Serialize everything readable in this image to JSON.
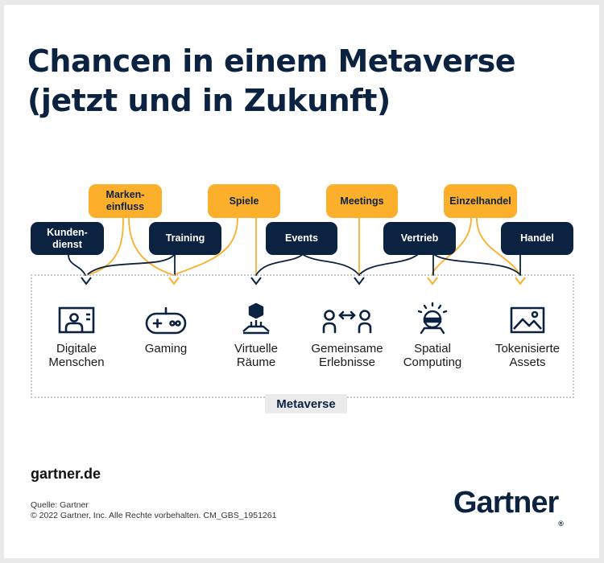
{
  "title": {
    "line1": "Chancen in einem Metaverse",
    "line2": "(jetzt und in Zukunft)"
  },
  "top_tags": [
    {
      "label": "Marken-\neinfluss",
      "color": "orange"
    },
    {
      "label": "Spiele",
      "color": "orange"
    },
    {
      "label": "Meetings",
      "color": "orange"
    },
    {
      "label": "Einzelhandel",
      "color": "orange"
    }
  ],
  "lower_tags": [
    {
      "label": "Kunden-\ndienst",
      "color": "navy"
    },
    {
      "label": "Training",
      "color": "navy"
    },
    {
      "label": "Events",
      "color": "navy"
    },
    {
      "label": "Vertrieb",
      "color": "navy"
    },
    {
      "label": "Handel",
      "color": "navy"
    }
  ],
  "metaverse_items": [
    {
      "label": "Digitale\nMenschen",
      "icon": "digital-human-icon"
    },
    {
      "label": "Gaming",
      "icon": "gamepad-icon"
    },
    {
      "label": "Virtuelle\nRäume",
      "icon": "virtual-space-icon"
    },
    {
      "label": "Gemeinsame\nErlebnisse",
      "icon": "shared-experience-icon"
    },
    {
      "label": "Spatial\nComputing",
      "icon": "spatial-computing-icon"
    },
    {
      "label": "Tokenisierte\nAssets",
      "icon": "image-asset-icon"
    }
  ],
  "container_label": "Metaverse",
  "footer": {
    "site": "gartner.de",
    "source": "Quelle: Gartner",
    "copyright": "© 2022 Gartner, Inc. Alle Rechte vorbehalten. CM_GBS_1951261",
    "logo": "Gartner",
    "logo_mark": "®"
  },
  "colors": {
    "navy": "#0b2240",
    "orange": "#fbaf2a",
    "background": "#ffffff",
    "frame": "#e9e9e9"
  }
}
